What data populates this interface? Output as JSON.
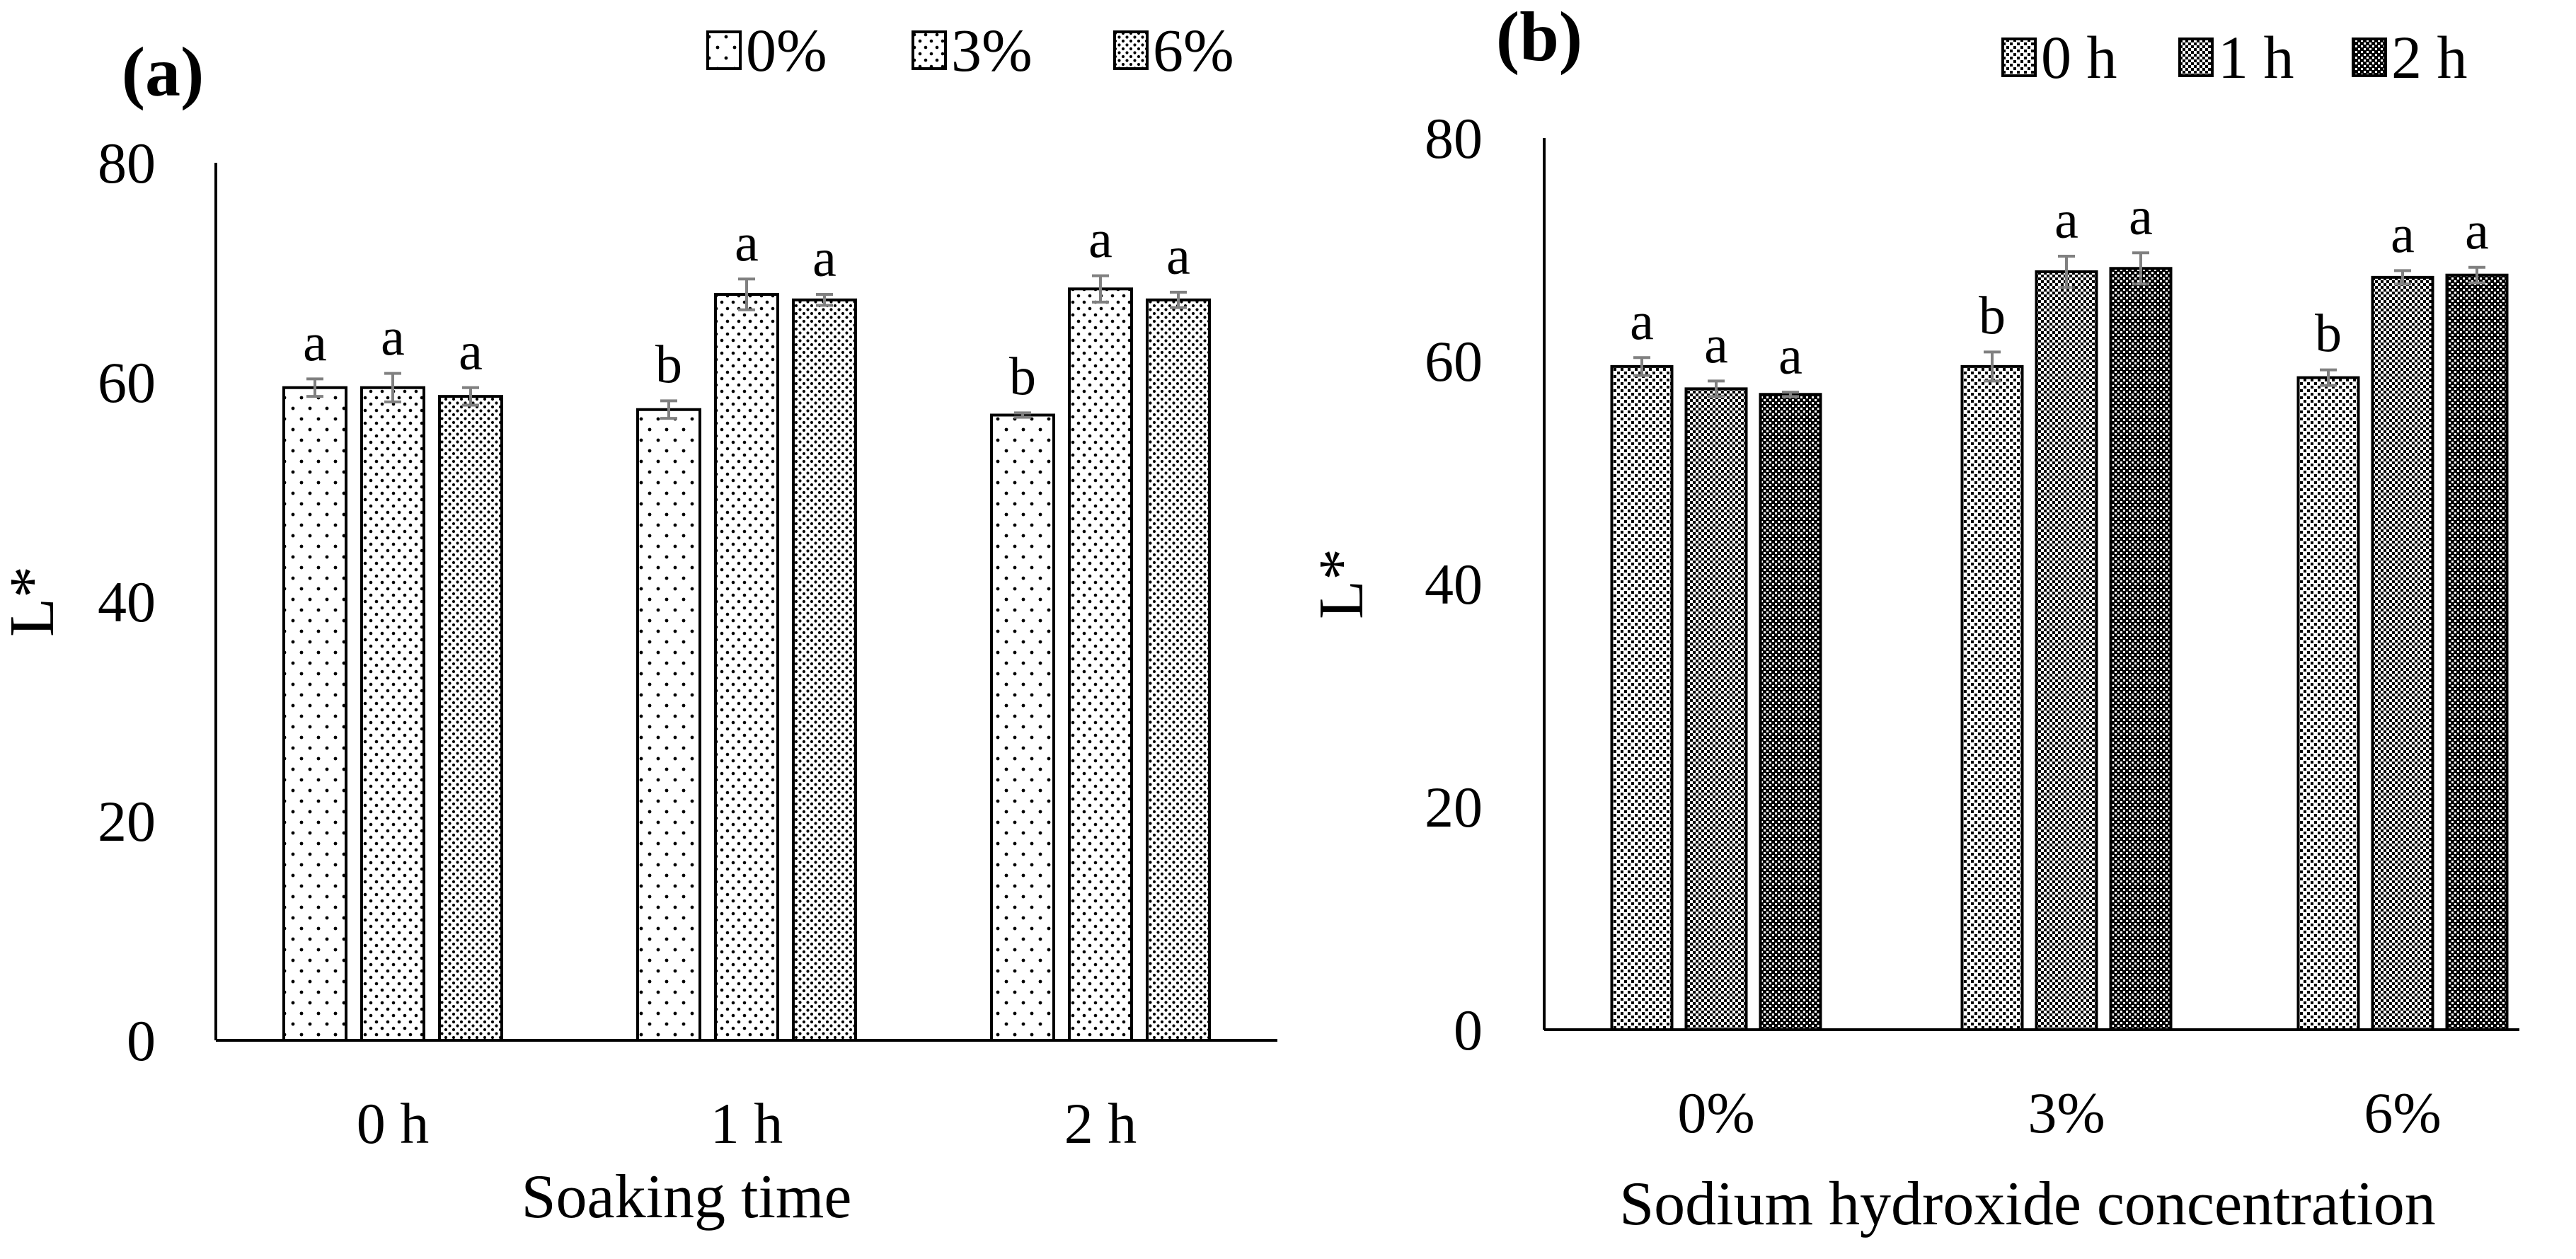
{
  "colors": {
    "axis": "#000000",
    "bar_stroke": "#000000",
    "error_bar": "#808080",
    "background": "#ffffff"
  },
  "chart_data": [
    {
      "panel_label": "(a)",
      "type": "bar",
      "title": "",
      "xlabel": "Soaking time",
      "ylabel": "L*",
      "ylim": [
        0,
        80
      ],
      "yticks": [
        "0",
        "20",
        "40",
        "60",
        "80"
      ],
      "grid": false,
      "legend_position": "top-right",
      "categories": [
        "0 h",
        "1 h",
        "2 h"
      ],
      "series": [
        {
          "name": "0%",
          "pattern": "dots-sparse",
          "values": [
            59.5,
            57.5,
            57
          ],
          "errors": [
            0.8,
            0.8,
            0.2
          ],
          "letters": [
            "a",
            "b",
            "b"
          ]
        },
        {
          "name": "3%",
          "pattern": "dots-medium",
          "values": [
            59.5,
            68,
            68.5
          ],
          "errors": [
            1.3,
            1.4,
            1.2
          ],
          "letters": [
            "a",
            "a",
            "a"
          ]
        },
        {
          "name": "6%",
          "pattern": "dots-dense",
          "values": [
            58.7,
            67.5,
            67.5
          ],
          "errors": [
            0.8,
            0.5,
            0.7
          ],
          "letters": [
            "a",
            "a",
            "a"
          ]
        }
      ]
    },
    {
      "panel_label": "(b)",
      "type": "bar",
      "title": "",
      "xlabel": "Sodium hydroxide concentration",
      "ylabel": "L*",
      "ylim": [
        0,
        80
      ],
      "yticks": [
        "0",
        "20",
        "40",
        "60",
        "80"
      ],
      "grid": false,
      "legend_position": "top-right",
      "categories": [
        "0%",
        "3%",
        "6%"
      ],
      "series": [
        {
          "name": "0 h",
          "pattern": "checker-light",
          "values": [
            59.5,
            59.5,
            58.5
          ],
          "errors": [
            0.8,
            1.3,
            0.7
          ],
          "letters": [
            "a",
            "b",
            "b"
          ]
        },
        {
          "name": "1 h",
          "pattern": "checker-medium",
          "values": [
            57.5,
            68,
            67.5
          ],
          "errors": [
            0.7,
            1.4,
            0.6
          ],
          "letters": [
            "a",
            "a",
            "a"
          ]
        },
        {
          "name": "2 h",
          "pattern": "checker-dark",
          "values": [
            57,
            68.3,
            67.7
          ],
          "errors": [
            0.2,
            1.4,
            0.7
          ],
          "letters": [
            "a",
            "a",
            "a"
          ]
        }
      ]
    }
  ]
}
